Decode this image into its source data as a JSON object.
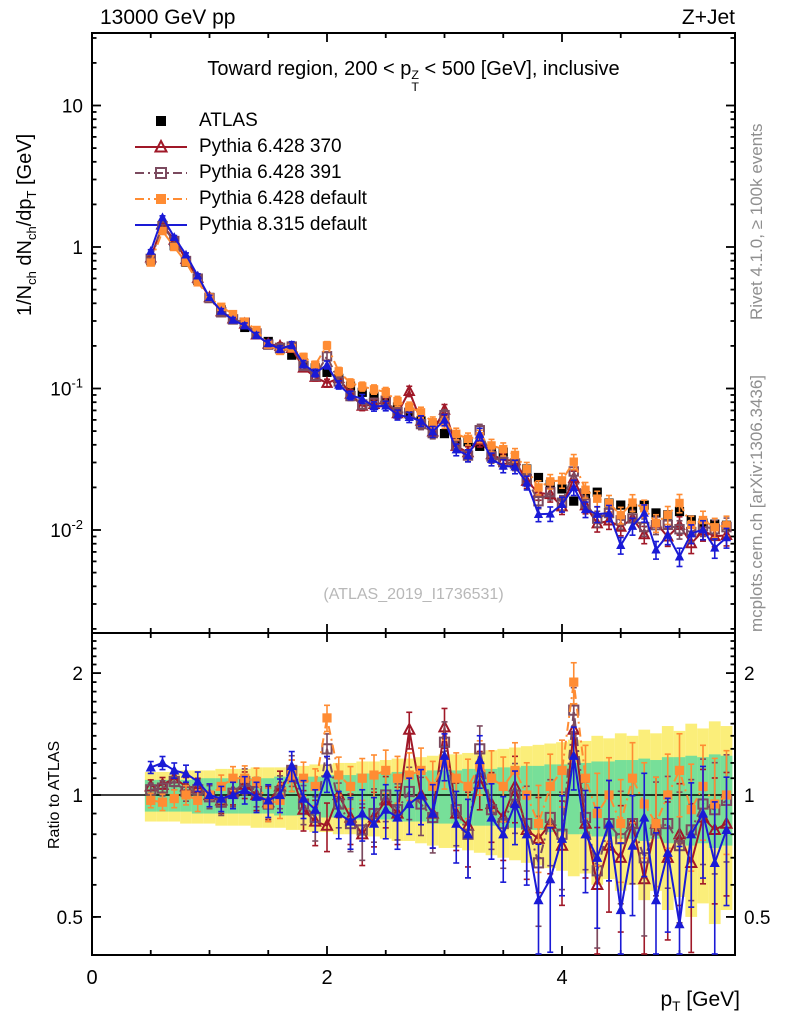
{
  "header": {
    "left": "13000 GeV pp",
    "right": "Z+Jet"
  },
  "title": "Toward region, 200 < p^{Z}_{T} < 500 [GeV], inclusive",
  "watermark": "(ATLAS_2019_I1736531)",
  "side_notes": {
    "rivet": "Rivet 4.1.0, ≥ 100k events",
    "mcplots": "mcplots.cern.ch [arXiv:1306.3436]"
  },
  "axes": {
    "ylabel_top": "1/N_{ch} dN_{ch}/dp_{T} [GeV]",
    "ylabel_ratio": "Ratio to ATLAS",
    "xlabel": "p_{T} [GeV]",
    "yticks_top": [
      {
        "v": 10,
        "base": "10",
        "exp": ""
      },
      {
        "v": 1,
        "base": "1",
        "exp": ""
      },
      {
        "v": 0.1,
        "base": "10",
        "exp": "-1"
      },
      {
        "v": 0.01,
        "base": "10",
        "exp": "-2"
      }
    ],
    "yticks_ratio": [
      {
        "v": 2,
        "label": "2"
      },
      {
        "v": 1,
        "label": "1"
      },
      {
        "v": 0.5,
        "label": "0.5"
      }
    ],
    "xticks": [
      {
        "v": 0,
        "label": "0"
      },
      {
        "v": 2,
        "label": "2"
      },
      {
        "v": 4,
        "label": "4"
      }
    ]
  },
  "legend": {
    "items": [
      {
        "label": "ATLAS",
        "color": "#000000",
        "marker": "square-filled",
        "line": "none"
      },
      {
        "label": "Pythia 6.428 370",
        "color": "#a01828",
        "marker": "triangle-open",
        "line": "solid"
      },
      {
        "label": "Pythia 6.428 391",
        "color": "#7b4a5f",
        "marker": "square-open",
        "line": "dashdot"
      },
      {
        "label": "Pythia 6.428 default",
        "color": "#ff8c33",
        "marker": "square-filled",
        "line": "dashdot"
      },
      {
        "label": "Pythia 8.315 default",
        "color": "#1a1ad6",
        "marker": "triangle-filled",
        "line": "solid"
      }
    ]
  },
  "chart_data": {
    "type": "line",
    "title": "Toward region, 200 < pT(Z) < 500 [GeV], inclusive",
    "xlabel": "p_T [GeV]",
    "ylabel_top": "1/N_ch dN_ch/dp_T [GeV]",
    "ylabel_ratio": "Ratio to ATLAS",
    "xlim": [
      0,
      5.47
    ],
    "ylim_top": [
      0.0019,
      32.6
    ],
    "ylim_ratio": [
      0.403,
      2.51
    ],
    "log_y_top": true,
    "log_y_ratio": true,
    "bin_width": 0.1,
    "x": [
      0.5,
      0.6,
      0.7,
      0.8,
      0.9,
      1.0,
      1.1,
      1.2,
      1.3,
      1.4,
      1.5,
      1.6,
      1.7,
      1.8,
      1.9,
      2.0,
      2.1,
      2.2,
      2.3,
      2.4,
      2.5,
      2.6,
      2.7,
      2.8,
      2.9,
      3.0,
      3.1,
      3.2,
      3.3,
      3.4,
      3.5,
      3.6,
      3.7,
      3.8,
      3.9,
      4.0,
      4.1,
      4.2,
      4.3,
      4.4,
      4.5,
      4.6,
      4.7,
      4.8,
      4.9,
      5.0,
      5.1,
      5.2,
      5.3,
      5.4
    ],
    "atlas_values": [
      0.8,
      1.35,
      1.02,
      0.78,
      0.58,
      0.44,
      0.36,
      0.305,
      0.27,
      0.24,
      0.215,
      0.19,
      0.172,
      0.152,
      0.14,
      0.13,
      0.118,
      0.104,
      0.094,
      0.088,
      0.082,
      0.074,
      0.066,
      0.059,
      0.055,
      0.048,
      0.0435,
      0.042,
      0.039,
      0.036,
      0.0355,
      0.0295,
      0.027,
      0.0235,
      0.021,
      0.0195,
      0.016,
      0.0175,
      0.0185,
      0.0155,
      0.015,
      0.0142,
      0.015,
      0.0132,
      0.0128,
      0.0135,
      0.0118,
      0.0112,
      0.011,
      0.0108
    ],
    "ratio_series": [
      {
        "name": "Pythia 6.428 370",
        "values": [
          1.05,
          1.06,
          1.1,
          1.05,
          1.04,
          1.0,
          0.97,
          1.02,
          1.06,
          1.0,
          0.96,
          1.05,
          1.12,
          0.92,
          0.86,
          0.84,
          1.0,
          0.88,
          0.8,
          0.88,
          0.97,
          0.9,
          1.45,
          1.0,
          0.9,
          1.47,
          0.9,
          0.84,
          1.1,
          0.95,
          0.88,
          1.05,
          0.82,
          0.78,
          0.85,
          0.75,
          1.45,
          0.85,
          0.6,
          0.75,
          0.7,
          0.85,
          0.62,
          0.85,
          0.7,
          0.8,
          0.68,
          0.88,
          0.82,
          0.85
        ]
      },
      {
        "name": "Pythia 6.428 391",
        "values": [
          1.03,
          1.04,
          1.08,
          1.02,
          1.03,
          0.99,
          0.96,
          1.01,
          1.08,
          1.02,
          0.95,
          1.02,
          1.15,
          0.95,
          0.88,
          1.3,
          0.95,
          0.85,
          0.82,
          0.9,
          1.0,
          0.92,
          1.02,
          0.95,
          0.88,
          1.35,
          0.92,
          0.8,
          1.3,
          0.92,
          0.85,
          1.0,
          0.85,
          0.68,
          0.88,
          0.8,
          1.62,
          0.88,
          0.65,
          0.85,
          0.78,
          0.85,
          0.7,
          0.82,
          0.85,
          0.75,
          0.82,
          0.95,
          0.92,
          0.97
        ]
      },
      {
        "name": "Pythia 6.428 default",
        "values": [
          0.97,
          0.96,
          0.98,
          1.0,
          0.97,
          1.0,
          1.05,
          1.1,
          1.1,
          1.08,
          0.95,
          0.97,
          1.12,
          1.1,
          1.05,
          1.55,
          1.12,
          1.05,
          1.1,
          1.12,
          1.15,
          1.1,
          1.12,
          1.15,
          1.05,
          1.2,
          1.1,
          1.05,
          1.18,
          1.1,
          1.05,
          1.15,
          1.0,
          0.85,
          1.05,
          1.15,
          1.9,
          1.1,
          0.9,
          1.0,
          0.85,
          1.1,
          0.95,
          0.85,
          1.0,
          1.15,
          0.92,
          1.05,
          0.95,
          1.0
        ]
      },
      {
        "name": "Pythia 8.315 default",
        "values": [
          1.17,
          1.2,
          1.15,
          1.13,
          1.08,
          1.0,
          0.98,
          1.0,
          1.03,
          0.99,
          0.97,
          1.0,
          1.18,
          0.98,
          0.92,
          1.13,
          0.9,
          0.86,
          0.9,
          0.85,
          0.92,
          0.88,
          0.95,
          1.0,
          0.9,
          1.25,
          0.85,
          0.8,
          1.22,
          0.88,
          0.8,
          0.95,
          0.8,
          0.55,
          0.62,
          0.78,
          1.25,
          0.8,
          0.7,
          0.85,
          0.52,
          0.75,
          0.88,
          0.55,
          0.72,
          0.48,
          0.8,
          0.9,
          0.68,
          0.82
        ]
      }
    ],
    "band_green_halfwidth": [
      0.09,
      0.09,
      0.09,
      0.09,
      0.1,
      0.1,
      0.1,
      0.1,
      0.1,
      0.1,
      0.1,
      0.11,
      0.11,
      0.11,
      0.11,
      0.12,
      0.12,
      0.12,
      0.13,
      0.13,
      0.13,
      0.14,
      0.14,
      0.14,
      0.15,
      0.15,
      0.15,
      0.16,
      0.16,
      0.16,
      0.17,
      0.17,
      0.18,
      0.18,
      0.19,
      0.19,
      0.2,
      0.2,
      0.21,
      0.21,
      0.22,
      0.22,
      0.23,
      0.22,
      0.24,
      0.24,
      0.25,
      0.24,
      0.26,
      0.25
    ],
    "band_yellow_halfwidth": [
      0.14,
      0.14,
      0.14,
      0.15,
      0.15,
      0.15,
      0.16,
      0.16,
      0.16,
      0.17,
      0.17,
      0.17,
      0.18,
      0.18,
      0.19,
      0.19,
      0.2,
      0.2,
      0.21,
      0.21,
      0.22,
      0.23,
      0.23,
      0.24,
      0.25,
      0.26,
      0.26,
      0.27,
      0.28,
      0.29,
      0.3,
      0.31,
      0.32,
      0.33,
      0.34,
      0.35,
      0.37,
      0.36,
      0.4,
      0.38,
      0.42,
      0.4,
      0.45,
      0.42,
      0.48,
      0.44,
      0.5,
      0.46,
      0.52,
      0.48
    ],
    "mc_err": {
      "base": 0.022,
      "slope": 0.028
    },
    "colors": {
      "band_green": "#77df99",
      "band_yellow": "#fbee7a",
      "ref_line": "#000000"
    },
    "legend_position": "top-left-inside",
    "grid": false
  }
}
